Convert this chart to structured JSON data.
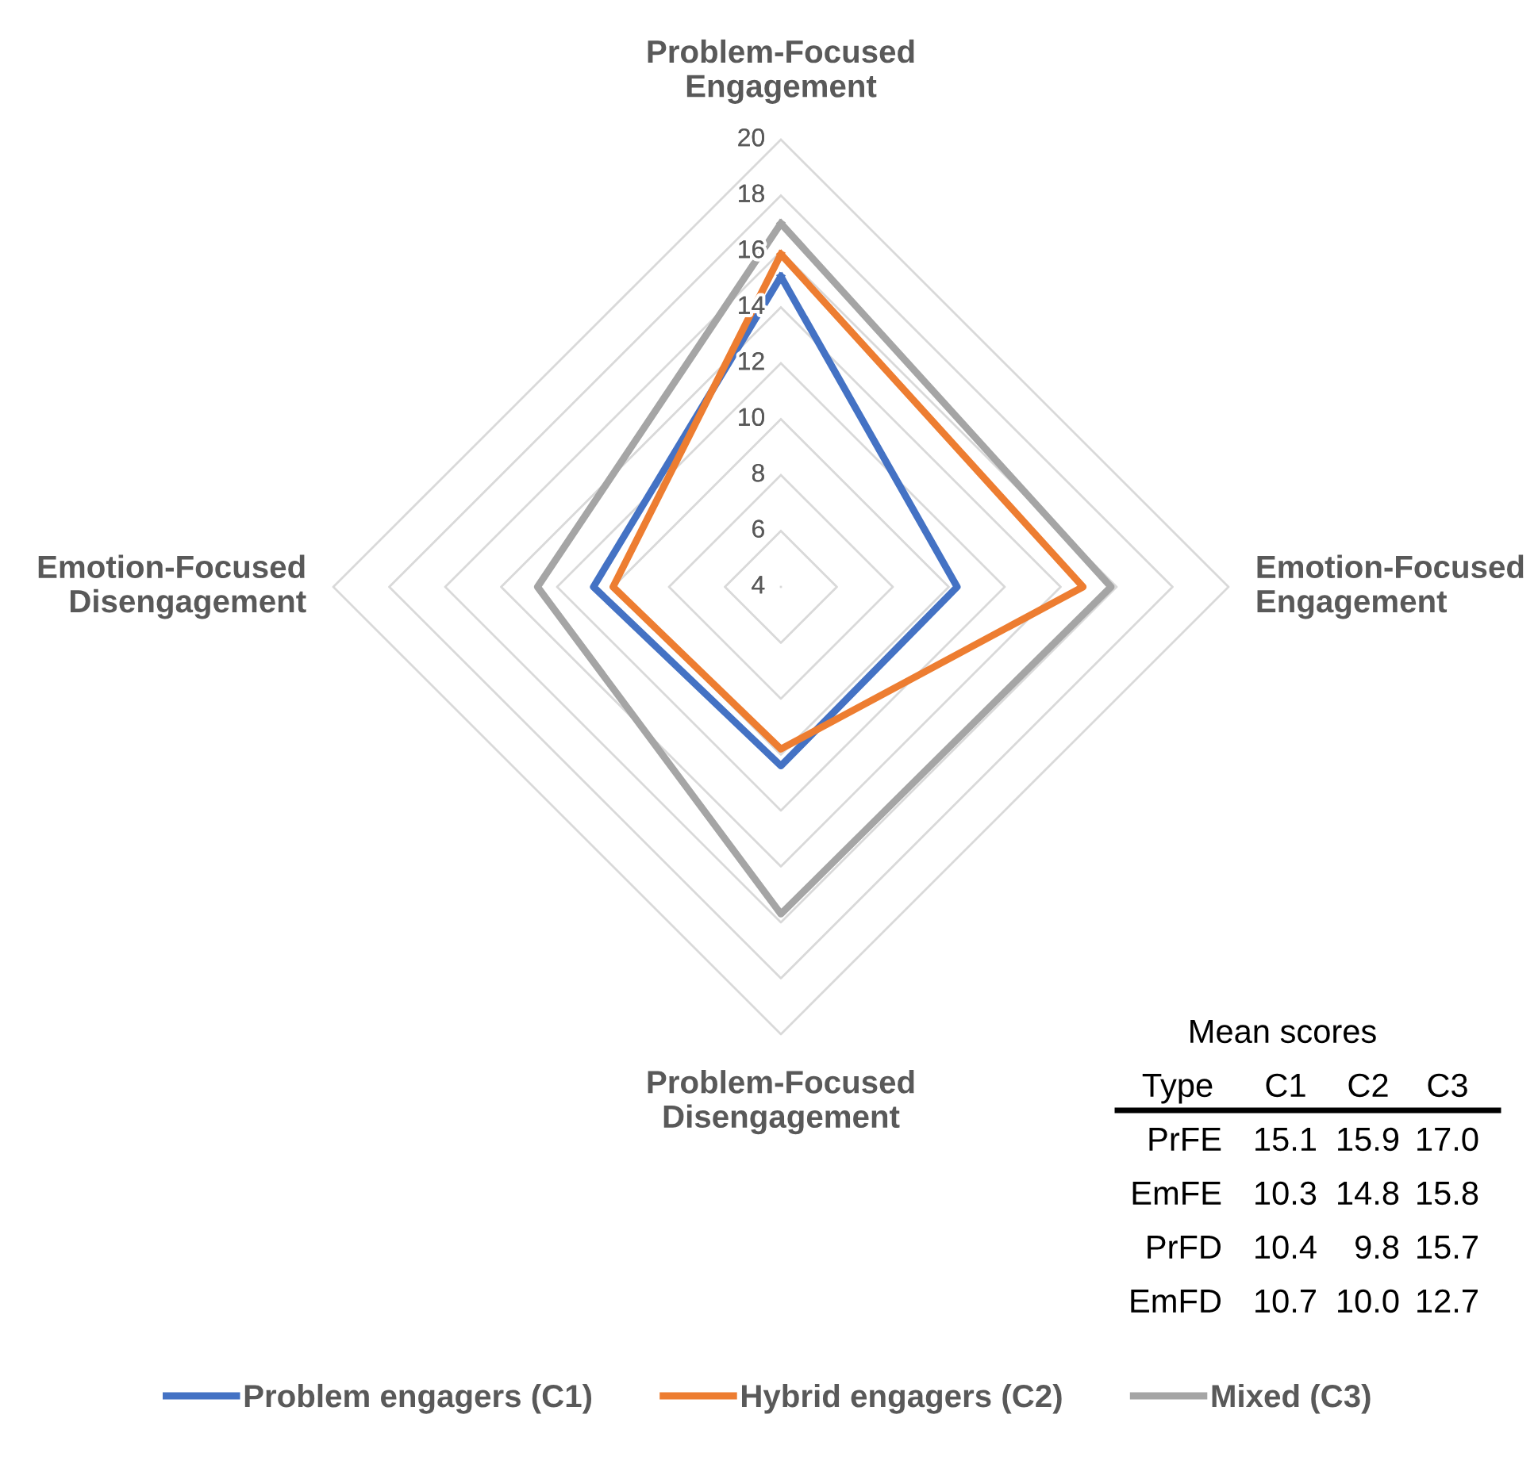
{
  "chart_data": {
    "type": "radar",
    "categories": [
      "Problem-Focused\nEngagement",
      "Emotion-Focused\nEngagement",
      "Problem-Focused\nDisengagement",
      "Emotion-Focused\nDisengagement"
    ],
    "series": [
      {
        "name": "Problem engagers (C1)",
        "color": "#4472c4",
        "values": [
          15.1,
          10.3,
          10.4,
          10.7
        ]
      },
      {
        "name": "Hybrid engagers (C2)",
        "color": "#ed7d31",
        "values": [
          15.9,
          14.8,
          9.8,
          10.0
        ]
      },
      {
        "name": "Mixed (C3)",
        "color": "#a5a5a5",
        "values": [
          17.0,
          15.8,
          15.7,
          12.7
        ]
      }
    ],
    "ylim": [
      4,
      20
    ],
    "yticks": [
      4,
      6,
      8,
      10,
      12,
      14,
      16,
      18,
      20
    ],
    "grid": true,
    "legend": "bottom",
    "marker": "none",
    "line_style": "solid",
    "annotations": [
      "Mean scores",
      "Type",
      "C1",
      "C2",
      "C3",
      "PrFE",
      "15.1",
      "15.9",
      "17.0",
      "EmFE",
      "10.3",
      "14.8",
      "15.8",
      "PrFD",
      "10.4",
      "9.8",
      "15.7",
      "EmFD",
      "10.7",
      "10.0",
      "12.7"
    ]
  }
}
